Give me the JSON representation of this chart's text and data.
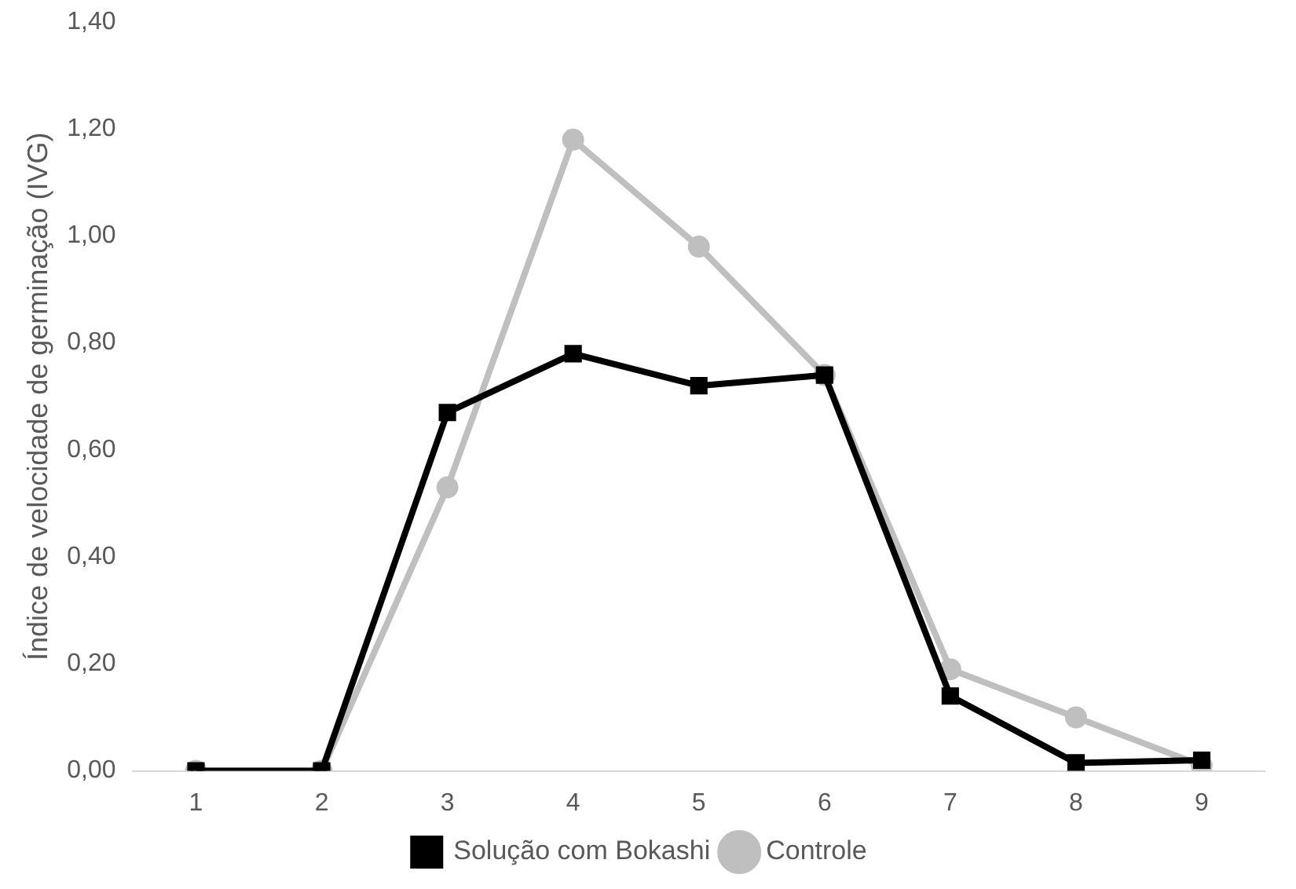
{
  "chart_data": {
    "type": "line",
    "ylabel": "Índice de velocidade de germinação (IVG)",
    "categories": [
      "1",
      "2",
      "3",
      "4",
      "5",
      "6",
      "7",
      "8",
      "9"
    ],
    "series": [
      {
        "name": "Controle",
        "color": "#bfbfbf",
        "marker": "circle",
        "values": [
          0,
          0,
          0.53,
          1.18,
          0.98,
          0.74,
          0.19,
          0.1,
          0.01
        ]
      },
      {
        "name": "Solução com Bokashi",
        "color": "#000000",
        "marker": "square",
        "values": [
          0,
          0,
          0.67,
          0.78,
          0.72,
          0.74,
          0.14,
          0.015,
          0.02
        ]
      }
    ],
    "ylim": [
      0,
      1.4
    ],
    "yticks": [
      {
        "value": 0,
        "label": "0,00"
      },
      {
        "value": 0.2,
        "label": "0,20"
      },
      {
        "value": 0.4,
        "label": "0,40"
      },
      {
        "value": 0.6,
        "label": "0,60"
      },
      {
        "value": 0.8,
        "label": "0,80"
      },
      {
        "value": 1.0,
        "label": "1,00"
      },
      {
        "value": 1.2,
        "label": "1,20"
      },
      {
        "value": 1.4,
        "label": "1,40"
      }
    ],
    "grid": false,
    "legend": "bottom",
    "line_style": "solid"
  }
}
